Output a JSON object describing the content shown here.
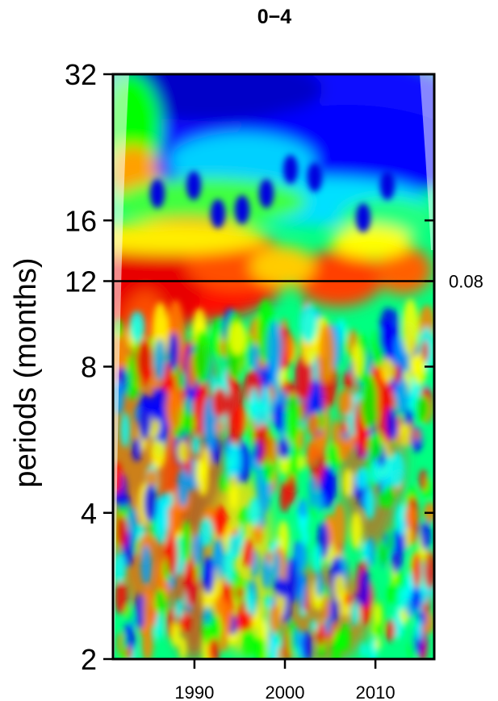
{
  "chart_data": {
    "type": "heatmap",
    "title": "0−4",
    "ylabel": "periods (months)",
    "xlabel": "",
    "x_tick_labels": [
      "1990",
      "2000",
      "2010"
    ],
    "x_ticks": [
      1990,
      2000,
      2010
    ],
    "xlim": [
      1981,
      2016.5
    ],
    "y_scale": "log2",
    "y_tick_labels": [
      "2",
      "4",
      "8",
      "12",
      "16",
      "32"
    ],
    "y_ticks": [
      2,
      4,
      8,
      12,
      16,
      32
    ],
    "ylim": [
      2,
      32
    ],
    "reference_line": {
      "y": 12,
      "label": "0.08"
    },
    "colormap": [
      "#00007f",
      "#0000ff",
      "#00ffff",
      "#00ff00",
      "#ffff00",
      "#ff0000",
      "#e00000"
    ],
    "cone_of_influence_color": "#ffffff",
    "power_regions": [
      {
        "period_range": [
          20,
          32
        ],
        "level": "low",
        "note": "mostly blue"
      },
      {
        "period_range": [
          10,
          16
        ],
        "level": "high",
        "note": "red band, strongest 1982-1996"
      },
      {
        "period_range": [
          2,
          8
        ],
        "level": "mixed",
        "note": "alternating red/yellow/blue patches"
      }
    ]
  }
}
